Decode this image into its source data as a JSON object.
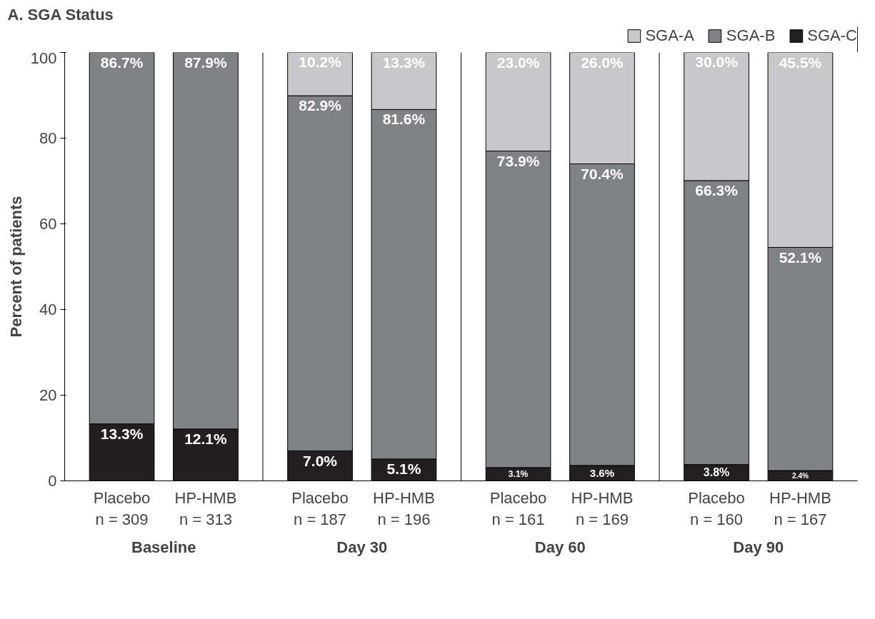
{
  "chart_data": {
    "type": "bar",
    "stacked": true,
    "title": "A. SGA Status",
    "ylabel": "Percent of patients",
    "categories": [
      "Placebo\nn = 309",
      "HP-HMB\nn = 313",
      "Placebo\nn = 187",
      "HP-HMB\nn = 196",
      "Placebo\nn = 161",
      "HP-HMB\nn = 169",
      "Placebo\nn = 160",
      "HP-HMB\nn = 167"
    ],
    "annotations": [
      "Baseline",
      "Day 30",
      "Day 60",
      "Day 90"
    ],
    "series": [
      {
        "name": "SGA-C",
        "color": "#231f20",
        "values": [
          13.3,
          12.1,
          7.0,
          5.1,
          3.1,
          3.6,
          3.8,
          2.4
        ],
        "value_labels": [
          "13.3%",
          "12.1%",
          "7.0%",
          "5.1%",
          "3.1%",
          "3.6%",
          "3.8%",
          "2.4%"
        ]
      },
      {
        "name": "SGA-B",
        "color": "#808285",
        "values": [
          86.7,
          87.9,
          82.9,
          81.6,
          73.9,
          70.4,
          66.3,
          52.1
        ],
        "value_labels": [
          "86.7%",
          "87.9%",
          "82.9%",
          "81.6%",
          "73.9%",
          "70.4%",
          "66.3%",
          "52.1%"
        ]
      },
      {
        "name": "SGA-A",
        "color": "#c8c8ca",
        "values": [
          0,
          0,
          10.2,
          13.3,
          23.0,
          26.0,
          30.0,
          45.5
        ],
        "value_labels": [
          null,
          null,
          "10.2%",
          "13.3%",
          "23.0%",
          "26.0%",
          "30.0%",
          "45.5%"
        ]
      }
    ],
    "ylim": [
      0,
      100
    ],
    "yticks": [
      0,
      20,
      40,
      60,
      80,
      100
    ],
    "grid": false,
    "legend": "top right"
  }
}
